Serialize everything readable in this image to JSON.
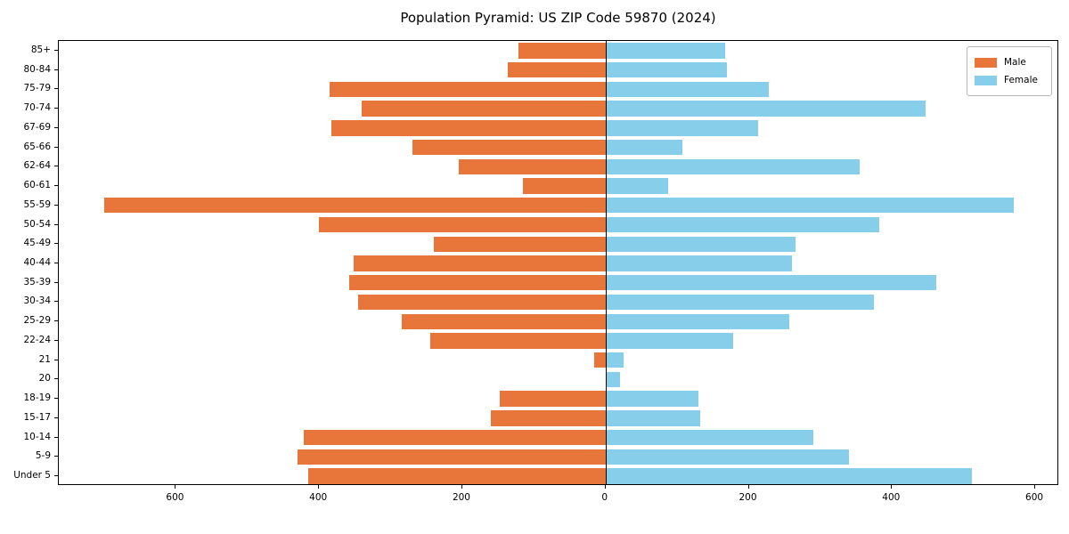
{
  "title": "Population Pyramid: US ZIP Code 59870 (2024)",
  "legend": {
    "male_label": "Male",
    "female_label": "Female"
  },
  "colors": {
    "male": "#e8763b",
    "female": "#87ceeb",
    "axis": "#000000",
    "background": "#ffffff"
  },
  "chart_data": {
    "type": "bar",
    "subtype": "population-pyramid",
    "title": "Population Pyramid: US ZIP Code 59870 (2024)",
    "categories_top_to_bottom": [
      "85+",
      "80-84",
      "75-79",
      "70-74",
      "67-69",
      "65-66",
      "62-64",
      "60-61",
      "55-59",
      "50-54",
      "45-49",
      "40-44",
      "35-39",
      "30-34",
      "25-29",
      "22-24",
      "21",
      "20",
      "18-19",
      "15-17",
      "10-14",
      "5-9",
      "Under 5"
    ],
    "series": [
      {
        "name": "Male",
        "side": "left",
        "color": "#e8763b",
        "values": [
          122,
          137,
          385,
          340,
          383,
          270,
          205,
          115,
          700,
          400,
          240,
          352,
          358,
          345,
          285,
          245,
          16,
          0,
          148,
          160,
          422,
          430,
          415
        ]
      },
      {
        "name": "Female",
        "side": "right",
        "color": "#87ceeb",
        "values": [
          167,
          170,
          228,
          447,
          213,
          107,
          355,
          88,
          570,
          382,
          265,
          260,
          462,
          375,
          257,
          178,
          25,
          20,
          130,
          132,
          290,
          340,
          512
        ]
      }
    ],
    "x_tick_values": [
      -600,
      -400,
      -200,
      0,
      200,
      400,
      600
    ],
    "x_tick_labels": [
      "600",
      "400",
      "200",
      "0",
      "200",
      "400",
      "600"
    ],
    "xlim": [
      -763.5,
      633.5
    ],
    "grid": false,
    "legend_position": "upper right",
    "bar_fraction": 0.8
  }
}
